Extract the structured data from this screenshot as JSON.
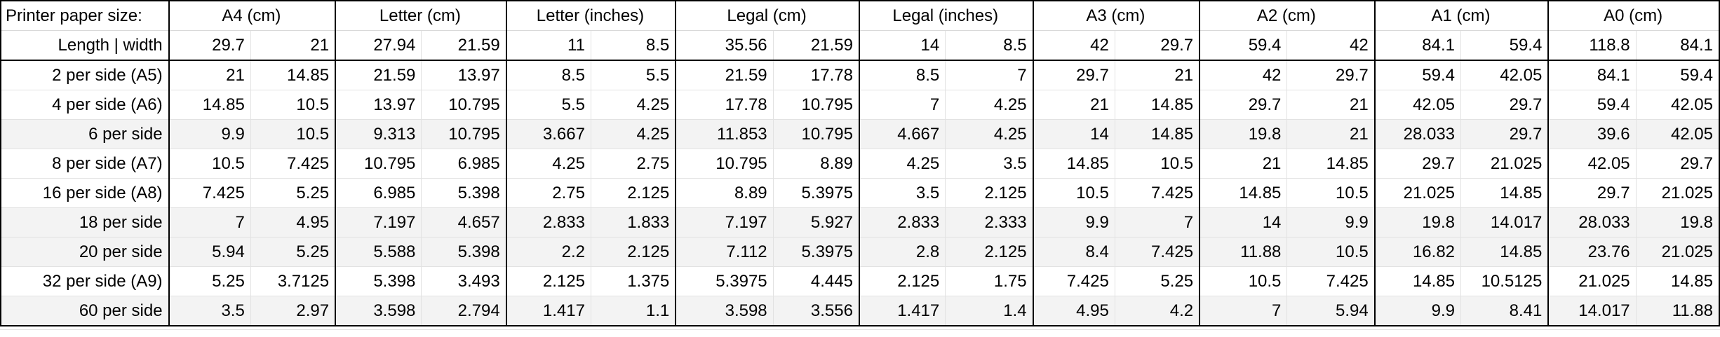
{
  "corner_label": "Printer paper size:",
  "dims_label": "Length | width",
  "groups": [
    {
      "label": "A4 (cm)",
      "length": "29.7",
      "width": "21"
    },
    {
      "label": "Letter (cm)",
      "length": "27.94",
      "width": "21.59"
    },
    {
      "label": "Letter (inches)",
      "length": "11",
      "width": "8.5"
    },
    {
      "label": "Legal (cm)",
      "length": "35.56",
      "width": "21.59"
    },
    {
      "label": "Legal (inches)",
      "length": "14",
      "width": "8.5"
    },
    {
      "label": "A3 (cm)",
      "length": "42",
      "width": "29.7"
    },
    {
      "label": "A2 (cm)",
      "length": "59.4",
      "width": "42"
    },
    {
      "label": "A1 (cm)",
      "length": "84.1",
      "width": "59.4"
    },
    {
      "label": "A0 (cm)",
      "length": "118.8",
      "width": "84.1"
    }
  ],
  "rows": [
    {
      "label": "2 per side (A5)",
      "shaded": false,
      "cells": [
        "21",
        "14.85",
        "21.59",
        "13.97",
        "8.5",
        "5.5",
        "21.59",
        "17.78",
        "8.5",
        "7",
        "29.7",
        "21",
        "42",
        "29.7",
        "59.4",
        "42.05",
        "84.1",
        "59.4"
      ]
    },
    {
      "label": "4 per side (A6)",
      "shaded": false,
      "cells": [
        "14.85",
        "10.5",
        "13.97",
        "10.795",
        "5.5",
        "4.25",
        "17.78",
        "10.795",
        "7",
        "4.25",
        "21",
        "14.85",
        "29.7",
        "21",
        "42.05",
        "29.7",
        "59.4",
        "42.05"
      ]
    },
    {
      "label": "6 per side",
      "shaded": true,
      "cells": [
        "9.9",
        "10.5",
        "9.313",
        "10.795",
        "3.667",
        "4.25",
        "11.853",
        "10.795",
        "4.667",
        "4.25",
        "14",
        "14.85",
        "19.8",
        "21",
        "28.033",
        "29.7",
        "39.6",
        "42.05"
      ]
    },
    {
      "label": "8 per side (A7)",
      "shaded": false,
      "cells": [
        "10.5",
        "7.425",
        "10.795",
        "6.985",
        "4.25",
        "2.75",
        "10.795",
        "8.89",
        "4.25",
        "3.5",
        "14.85",
        "10.5",
        "21",
        "14.85",
        "29.7",
        "21.025",
        "42.05",
        "29.7"
      ]
    },
    {
      "label": "16 per side (A8)",
      "shaded": false,
      "cells": [
        "7.425",
        "5.25",
        "6.985",
        "5.398",
        "2.75",
        "2.125",
        "8.89",
        "5.3975",
        "3.5",
        "2.125",
        "10.5",
        "7.425",
        "14.85",
        "10.5",
        "21.025",
        "14.85",
        "29.7",
        "21.025"
      ]
    },
    {
      "label": "18 per side",
      "shaded": true,
      "cells": [
        "7",
        "4.95",
        "7.197",
        "4.657",
        "2.833",
        "1.833",
        "7.197",
        "5.927",
        "2.833",
        "2.333",
        "9.9",
        "7",
        "14",
        "9.9",
        "19.8",
        "14.017",
        "28.033",
        "19.8"
      ]
    },
    {
      "label": "20 per side",
      "shaded": true,
      "cells": [
        "5.94",
        "5.25",
        "5.588",
        "5.398",
        "2.2",
        "2.125",
        "7.112",
        "5.3975",
        "2.8",
        "2.125",
        "8.4",
        "7.425",
        "11.88",
        "10.5",
        "16.82",
        "14.85",
        "23.76",
        "21.025"
      ]
    },
    {
      "label": "32 per side (A9)",
      "shaded": false,
      "cells": [
        "5.25",
        "3.7125",
        "5.398",
        "3.493",
        "2.125",
        "1.375",
        "5.3975",
        "4.445",
        "2.125",
        "1.75",
        "7.425",
        "5.25",
        "10.5",
        "7.425",
        "14.85",
        "10.5125",
        "21.025",
        "14.85"
      ]
    },
    {
      "label": "60 per side",
      "shaded": true,
      "cells": [
        "3.5",
        "2.97",
        "3.598",
        "2.794",
        "1.417",
        "1.1",
        "3.598",
        "3.556",
        "1.417",
        "1.4",
        "4.95",
        "4.2",
        "7",
        "5.94",
        "9.9",
        "8.41",
        "14.017",
        "11.88"
      ]
    }
  ]
}
